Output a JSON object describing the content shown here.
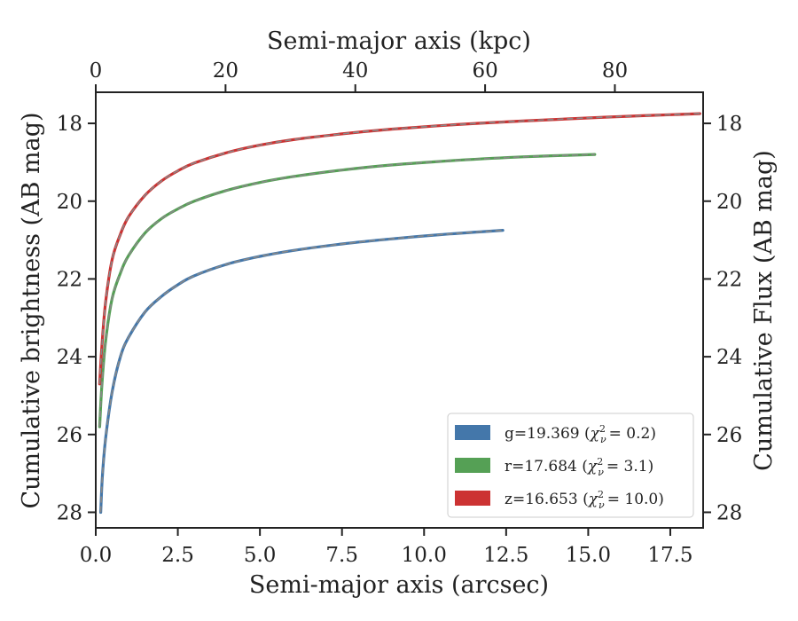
{
  "chart_data": {
    "type": "line",
    "xlabel": "Semi-major axis (arcsec)",
    "ylabel": "Cumulative brightness (AB mag)",
    "top_xlabel": "Semi-major axis (kpc)",
    "right_ylabel": "Cumulative Flux (AB mag)",
    "xlim": [
      0,
      18.5
    ],
    "ylim": [
      28.4,
      17.2
    ],
    "y_inverted": true,
    "top_xlim": [
      0,
      93.6
    ],
    "x_ticks": [
      "0.0",
      "2.5",
      "5.0",
      "7.5",
      "10.0",
      "12.5",
      "15.0",
      "17.5"
    ],
    "y_ticks": [
      "18",
      "20",
      "22",
      "24",
      "26",
      "28"
    ],
    "top_x_ticks": [
      "0",
      "20",
      "40",
      "60",
      "80"
    ],
    "legend_placement": "lower-right",
    "grid": false,
    "series": [
      {
        "name": "g=19.369",
        "chi2": "0.2",
        "color": "#4477aa",
        "x": [
          0.15,
          0.2,
          0.3,
          0.5,
          0.75,
          1.0,
          1.5,
          2.0,
          2.5,
          3.0,
          4.0,
          5.0,
          6.0,
          7.5,
          9.0,
          10.5,
          12.4
        ],
        "y": [
          28.0,
          27.1,
          26.1,
          24.9,
          24.0,
          23.5,
          22.85,
          22.45,
          22.15,
          21.92,
          21.62,
          21.42,
          21.27,
          21.1,
          20.97,
          20.86,
          20.75
        ]
      },
      {
        "name": "r=17.684",
        "chi2": "3.1",
        "color": "#55a055",
        "x": [
          0.12,
          0.18,
          0.3,
          0.5,
          0.75,
          1.0,
          1.5,
          2.0,
          2.5,
          3.0,
          4.0,
          5.0,
          6.0,
          7.5,
          9.0,
          11.0,
          13.0,
          15.2
        ],
        "y": [
          25.8,
          24.8,
          23.6,
          22.5,
          21.85,
          21.4,
          20.82,
          20.45,
          20.2,
          20.0,
          19.72,
          19.52,
          19.37,
          19.2,
          19.07,
          18.95,
          18.86,
          18.8
        ]
      },
      {
        "name": "z=16.653",
        "chi2": "10.0",
        "color": "#cc3333",
        "x": [
          0.12,
          0.18,
          0.3,
          0.5,
          0.75,
          1.0,
          1.5,
          2.0,
          2.5,
          3.0,
          4.0,
          5.0,
          6.0,
          7.5,
          9.0,
          11.0,
          13.0,
          15.5,
          18.4
        ],
        "y": [
          24.7,
          23.8,
          22.6,
          21.5,
          20.85,
          20.4,
          19.85,
          19.48,
          19.22,
          19.02,
          18.75,
          18.56,
          18.42,
          18.27,
          18.15,
          18.03,
          17.94,
          17.84,
          17.75
        ]
      }
    ]
  }
}
